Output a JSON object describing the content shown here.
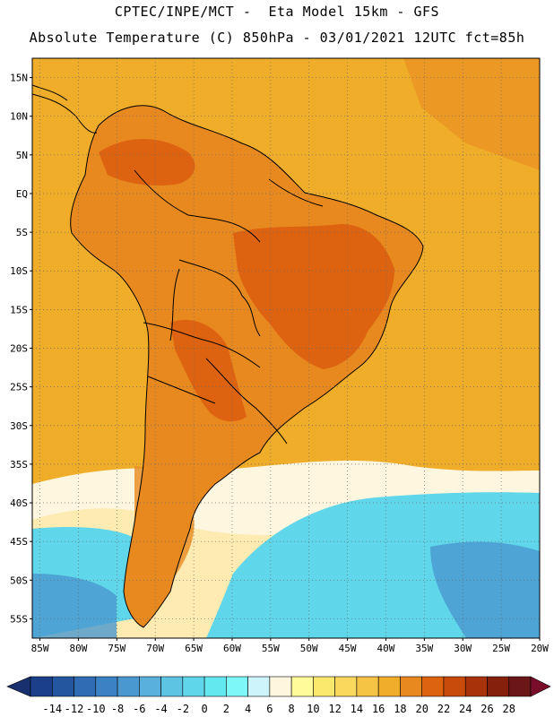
{
  "header": {
    "line1": "CPTEC/INPE/MCT -  Eta Model 15km - GFS",
    "line2": "Absolute Temperature (C) 850hPa - 03/01/2021 12UTC fct=85h"
  },
  "axes": {
    "lat_labels": [
      "15N",
      "10N",
      "5N",
      "EQ",
      "5S",
      "10S",
      "15S",
      "20S",
      "25S",
      "30S",
      "35S",
      "40S",
      "45S",
      "50S",
      "55S"
    ],
    "lon_labels": [
      "85W",
      "80W",
      "75W",
      "70W",
      "65W",
      "60W",
      "55W",
      "50W",
      "45W",
      "40W",
      "35W",
      "30W",
      "25W",
      "20W"
    ]
  },
  "colorbar": {
    "labels": [
      "-14",
      "-12",
      "-10",
      "-8",
      "-6",
      "-4",
      "-2",
      "0",
      "2",
      "4",
      "6",
      "8",
      "10",
      "12",
      "14",
      "16",
      "18",
      "20",
      "22",
      "24",
      "26",
      "28"
    ],
    "colors": [
      "#1b3f8a",
      "#2456a0",
      "#2f6cb4",
      "#3b82c4",
      "#4a98d0",
      "#59b0dc",
      "#5ec4e4",
      "#5fd6ea",
      "#64e8ef",
      "#7df7f7",
      "#cdf3fb",
      "#fff6df",
      "#fffb9a",
      "#fbe96e",
      "#f9d85d",
      "#f6c445",
      "#f0ad2a",
      "#e8891f",
      "#de6310",
      "#c94b0c",
      "#a8330a",
      "#84200c",
      "#6b1717"
    ],
    "under_color": "#18306e",
    "over_color": "#7a0d2a"
  },
  "map_colors": {
    "ocean_warm": "#f0ad2a",
    "land_warm": "#e8891f",
    "land_hot": "#de6310",
    "cold_cyan": "#5fd6ea",
    "cold_blue": "#4a98d0",
    "cream": "#fff6df",
    "yellow": "#f9d85d"
  }
}
